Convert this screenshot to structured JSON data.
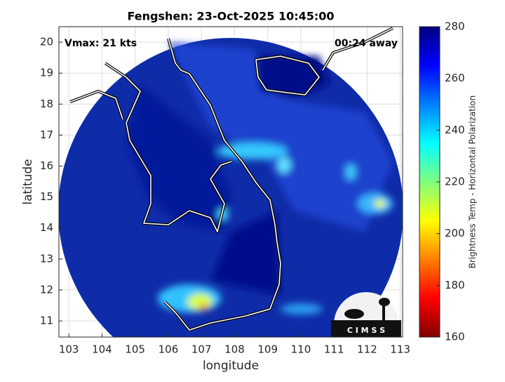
{
  "chart_data": {
    "type": "map",
    "title": "Fengshen: 23-Oct-2025 10:45:00",
    "annotations": [
      "Vmax: 21 kts",
      "00:24 away"
    ],
    "xlabel": "longitude",
    "ylabel": "latitude",
    "xlim": [
      102.7,
      113.07
    ],
    "ylim": [
      10.48,
      20.5
    ],
    "xticks": [
      103,
      104,
      105,
      106,
      107,
      108,
      109,
      110,
      111,
      112,
      113
    ],
    "yticks": [
      11,
      12,
      13,
      14,
      15,
      16,
      17,
      18,
      19,
      20
    ],
    "grid": true,
    "colorbar": {
      "label": "Brightness Temp - Horizontal Polarization",
      "clim": [
        160,
        280
      ],
      "ticks": [
        160,
        180,
        200,
        220,
        240,
        260,
        280
      ],
      "colormap": "jet"
    },
    "logo": "C I M S S"
  }
}
